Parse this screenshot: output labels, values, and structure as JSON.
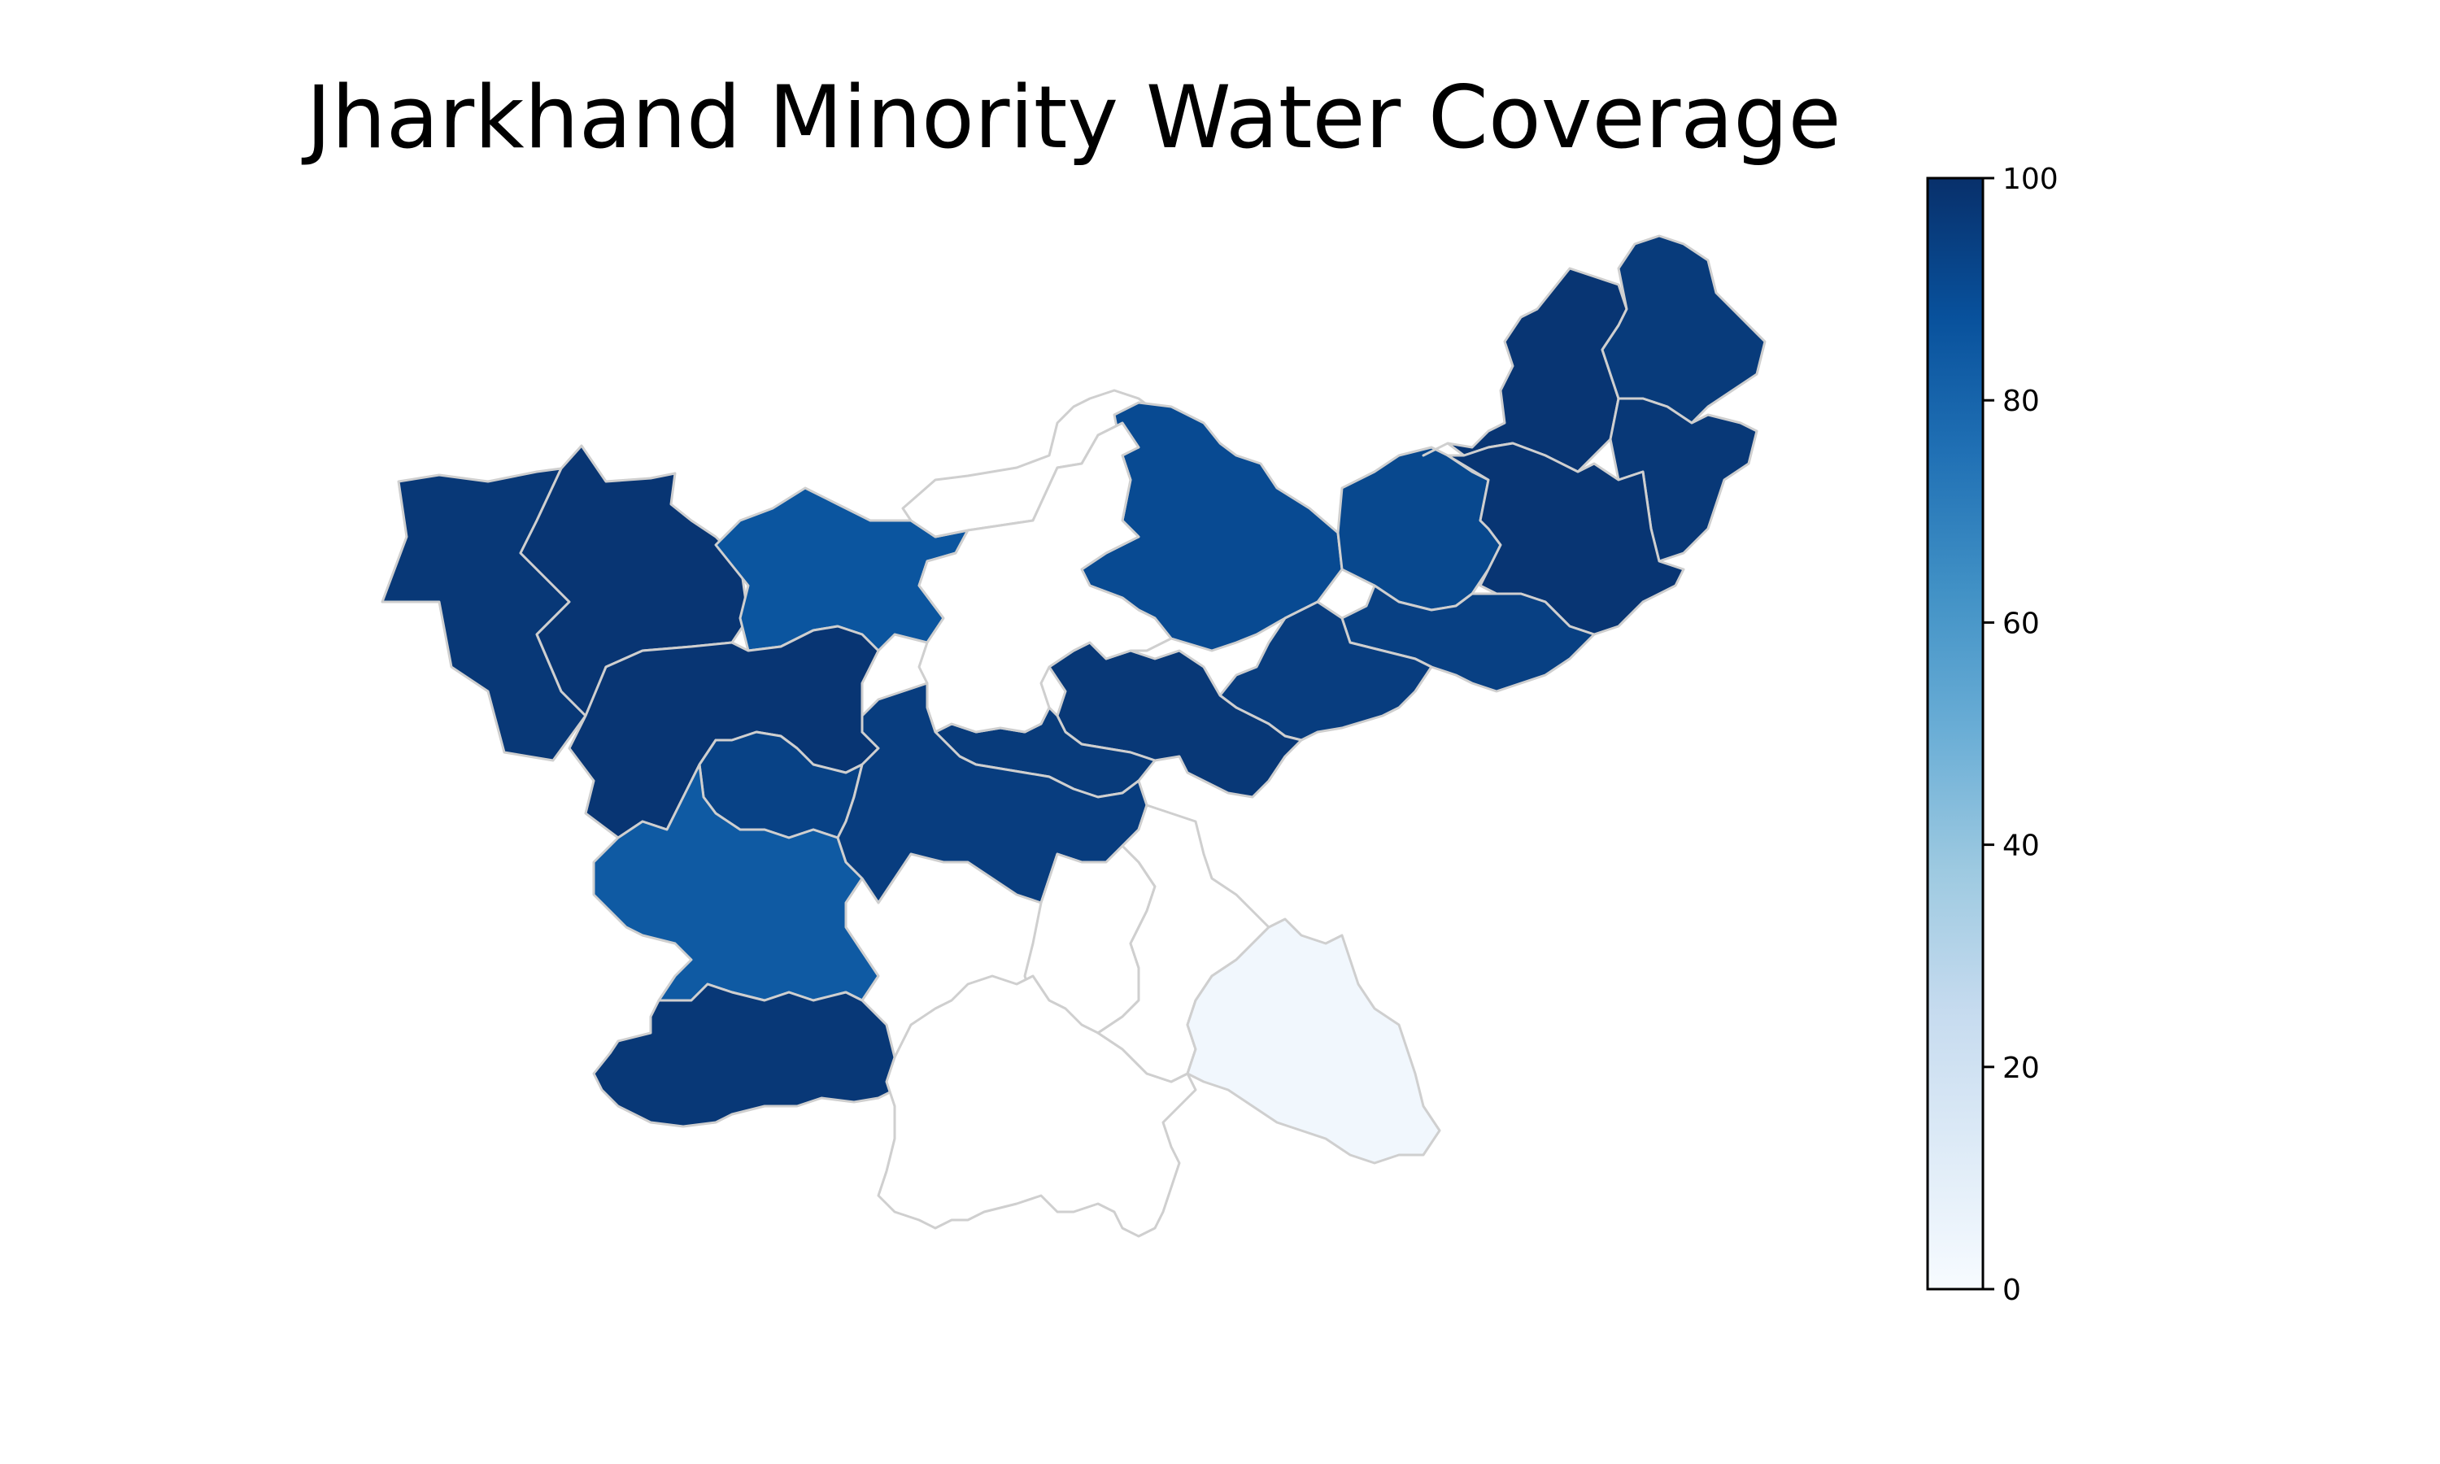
{
  "title": "Jharkhand Minority Water Coverage",
  "colorbar": {
    "min": 0,
    "max": 100,
    "ticks": [
      "0",
      "20",
      "40",
      "60",
      "80",
      "100"
    ],
    "colormap": "Blues",
    "stops": [
      "#f7fbff",
      "#deebf7",
      "#c6dbef",
      "#9ecae1",
      "#6baed6",
      "#4292c6",
      "#2171b5",
      "#08519c",
      "#08306b"
    ]
  },
  "districts": [
    {
      "id": "garhwa",
      "value": 97
    },
    {
      "id": "palamu",
      "value": 98
    },
    {
      "id": "chatra",
      "value": 86
    },
    {
      "id": "koderma",
      "value": null
    },
    {
      "id": "giridih",
      "value": 90
    },
    {
      "id": "deoghar",
      "value": 91
    },
    {
      "id": "godda",
      "value": 98
    },
    {
      "id": "sahibganj",
      "value": 96
    },
    {
      "id": "pakur",
      "value": 97
    },
    {
      "id": "dumka",
      "value": 98
    },
    {
      "id": "jamtara",
      "value": 94
    },
    {
      "id": "dhanbad",
      "value": 95
    },
    {
      "id": "bokaro",
      "value": 97
    },
    {
      "id": "ramgarh",
      "value": 96
    },
    {
      "id": "hazaribagh",
      "value": null
    },
    {
      "id": "latehar",
      "value": 98
    },
    {
      "id": "lohardaga",
      "value": 93
    },
    {
      "id": "gumla",
      "value": 84
    },
    {
      "id": "ranchi",
      "value": 95
    },
    {
      "id": "khunti",
      "value": null
    },
    {
      "id": "simdega",
      "value": 97
    },
    {
      "id": "west-singhbhum",
      "value": null
    },
    {
      "id": "seraikela-kharsawan",
      "value": null
    },
    {
      "id": "east-singhbhum",
      "value": 3
    }
  ]
}
